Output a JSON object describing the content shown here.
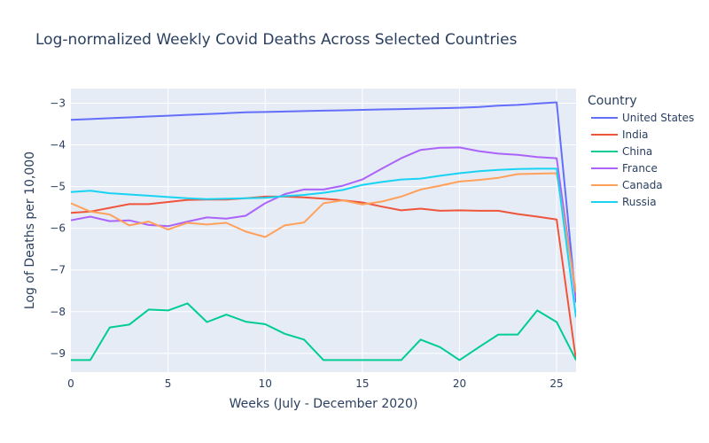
{
  "chart_data": {
    "type": "line",
    "title": "Log-normalized Weekly Covid Deaths Across Selected Countries",
    "xlabel": "Weeks (July - December 2020)",
    "ylabel": "Log of Deaths per 10,000",
    "xlim": [
      0,
      26
    ],
    "ylim": [
      -9.45,
      -2.65
    ],
    "xticks": [
      0,
      5,
      10,
      15,
      20,
      25
    ],
    "yticks": [
      -9,
      -8,
      -7,
      -6,
      -5,
      -4,
      -3
    ],
    "xtick_labels": [
      "0",
      "5",
      "10",
      "15",
      "20",
      "25"
    ],
    "ytick_labels": [
      "−9",
      "−8",
      "−7",
      "−6",
      "−5",
      "−4",
      "−3"
    ],
    "grid": true,
    "legend": {
      "title": "Country",
      "position": "right"
    },
    "x": [
      0,
      1,
      2,
      3,
      4,
      5,
      6,
      7,
      8,
      9,
      10,
      11,
      12,
      13,
      14,
      15,
      16,
      17,
      18,
      19,
      20,
      21,
      22,
      23,
      24,
      25,
      26
    ],
    "series": [
      {
        "name": "United States",
        "color": "#636efa",
        "values": [
          -3.4,
          -3.38,
          -3.36,
          -3.34,
          -3.32,
          -3.3,
          -3.28,
          -3.26,
          -3.24,
          -3.22,
          -3.21,
          -3.2,
          -3.19,
          -3.18,
          -3.17,
          -3.16,
          -3.15,
          -3.14,
          -3.13,
          -3.12,
          -3.11,
          -3.09,
          -3.06,
          -3.04,
          -3.01,
          -2.98,
          -7.78
        ]
      },
      {
        "name": "India",
        "color": "#ef553b",
        "values": [
          -5.63,
          -5.6,
          -5.51,
          -5.42,
          -5.42,
          -5.37,
          -5.32,
          -5.31,
          -5.31,
          -5.28,
          -5.24,
          -5.24,
          -5.26,
          -5.29,
          -5.33,
          -5.38,
          -5.48,
          -5.57,
          -5.53,
          -5.58,
          -5.57,
          -5.58,
          -5.58,
          -5.66,
          -5.72,
          -5.79,
          -9.17
        ]
      },
      {
        "name": "China",
        "color": "#00cc96",
        "values": [
          -9.16,
          -9.16,
          -8.38,
          -8.31,
          -7.95,
          -7.97,
          -7.8,
          -8.25,
          -8.07,
          -8.24,
          -8.3,
          -8.53,
          -8.67,
          -9.16,
          -9.16,
          -9.16,
          -9.16,
          -9.16,
          -8.67,
          -8.85,
          -9.16,
          -8.85,
          -8.55,
          -8.55,
          -7.97,
          -8.25,
          -9.16
        ]
      },
      {
        "name": "France",
        "color": "#ab63fa",
        "values": [
          -5.81,
          -5.72,
          -5.83,
          -5.81,
          -5.92,
          -5.95,
          -5.84,
          -5.74,
          -5.77,
          -5.7,
          -5.4,
          -5.18,
          -5.07,
          -5.07,
          -4.98,
          -4.83,
          -4.57,
          -4.32,
          -4.12,
          -4.07,
          -4.06,
          -4.15,
          -4.21,
          -4.24,
          -4.29,
          -4.32,
          -7.68
        ]
      },
      {
        "name": "Canada",
        "color": "#ffa15a",
        "values": [
          -5.4,
          -5.6,
          -5.67,
          -5.93,
          -5.84,
          -6.03,
          -5.87,
          -5.91,
          -5.87,
          -6.08,
          -6.21,
          -5.93,
          -5.86,
          -5.4,
          -5.33,
          -5.43,
          -5.36,
          -5.24,
          -5.07,
          -4.98,
          -4.88,
          -4.84,
          -4.79,
          -4.7,
          -4.69,
          -4.68,
          -7.54
        ]
      },
      {
        "name": "Russia",
        "color": "#19d3f3",
        "values": [
          -5.13,
          -5.1,
          -5.16,
          -5.19,
          -5.22,
          -5.25,
          -5.28,
          -5.3,
          -5.29,
          -5.28,
          -5.27,
          -5.23,
          -5.2,
          -5.15,
          -5.08,
          -4.96,
          -4.89,
          -4.83,
          -4.81,
          -4.74,
          -4.68,
          -4.63,
          -4.6,
          -4.58,
          -4.57,
          -4.57,
          -8.14
        ]
      }
    ]
  }
}
